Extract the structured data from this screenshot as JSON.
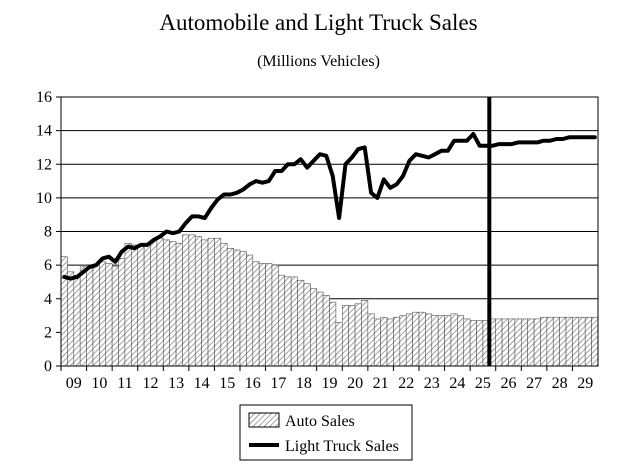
{
  "chart_data": {
    "type": "bar",
    "title": "Automobile and Light Truck Sales",
    "subtitle": "(Millions Vehicles)",
    "xlabel": "",
    "ylabel": "",
    "ylim": [
      0,
      16
    ],
    "yticks": [
      "0",
      "2",
      "4",
      "6",
      "8",
      "10",
      "12",
      "14",
      "16"
    ],
    "categories": [
      "09",
      "10",
      "11",
      "12",
      "13",
      "14",
      "15",
      "16",
      "17",
      "18",
      "19",
      "20",
      "21",
      "22",
      "23",
      "24",
      "25",
      "26",
      "27",
      "28",
      "29"
    ],
    "x_start": 2009.0,
    "x_end": 2030.0,
    "grid": true,
    "legend": "bottom-center",
    "vertical_marker": 2025.75,
    "colors": {
      "auto": "#7a7a7a",
      "truck": "#000000",
      "grid": "#000000"
    },
    "series": [
      {
        "name": "Auto Sales",
        "type": "bar",
        "x": [
          2009.0,
          2009.25,
          2009.5,
          2009.75,
          2010.0,
          2010.25,
          2010.5,
          2010.75,
          2011.0,
          2011.25,
          2011.5,
          2011.75,
          2012.0,
          2012.25,
          2012.5,
          2012.75,
          2013.0,
          2013.25,
          2013.5,
          2013.75,
          2014.0,
          2014.25,
          2014.5,
          2014.75,
          2015.0,
          2015.25,
          2015.5,
          2015.75,
          2016.0,
          2016.25,
          2016.5,
          2016.75,
          2017.0,
          2017.25,
          2017.5,
          2017.75,
          2018.0,
          2018.25,
          2018.5,
          2018.75,
          2019.0,
          2019.25,
          2019.5,
          2019.75,
          2020.0,
          2020.25,
          2020.5,
          2020.75,
          2021.0,
          2021.25,
          2021.5,
          2021.75,
          2022.0,
          2022.25,
          2022.5,
          2022.75,
          2023.0,
          2023.25,
          2023.5,
          2023.75,
          2024.0,
          2024.25,
          2024.5,
          2024.75,
          2025.0,
          2025.25,
          2025.5,
          2025.75,
          2026.0,
          2026.25,
          2026.5,
          2026.75,
          2027.0,
          2027.25,
          2027.5,
          2027.75,
          2028.0,
          2028.25,
          2028.5,
          2028.75,
          2029.0,
          2029.25,
          2029.5,
          2029.75
        ],
        "values": [
          6.5,
          5.6,
          5.4,
          5.9,
          5.8,
          6.0,
          6.2,
          6.1,
          5.9,
          6.4,
          7.3,
          7.2,
          7.2,
          7.3,
          7.5,
          7.6,
          7.5,
          7.4,
          7.3,
          7.8,
          7.8,
          7.7,
          7.5,
          7.6,
          7.6,
          7.3,
          7.0,
          6.9,
          6.8,
          6.6,
          6.2,
          6.1,
          6.1,
          6.0,
          5.4,
          5.3,
          5.3,
          5.1,
          4.9,
          4.6,
          4.4,
          4.2,
          3.8,
          2.6,
          3.6,
          3.6,
          3.7,
          3.9,
          3.1,
          2.8,
          2.9,
          2.8,
          2.9,
          3.0,
          3.1,
          3.2,
          3.2,
          3.1,
          3.0,
          3.0,
          3.0,
          3.1,
          3.0,
          2.8,
          2.7,
          2.7,
          2.7,
          2.8,
          2.8,
          2.8,
          2.8,
          2.8,
          2.8,
          2.8,
          2.8,
          2.9,
          2.9,
          2.9,
          2.9,
          2.9,
          2.9,
          2.9,
          2.9,
          2.9
        ]
      },
      {
        "name": "Light Truck Sales",
        "type": "line",
        "x": [
          2009.0,
          2009.25,
          2009.5,
          2009.75,
          2010.0,
          2010.25,
          2010.5,
          2010.75,
          2011.0,
          2011.25,
          2011.5,
          2011.75,
          2012.0,
          2012.25,
          2012.5,
          2012.75,
          2013.0,
          2013.25,
          2013.5,
          2013.75,
          2014.0,
          2014.25,
          2014.5,
          2014.75,
          2015.0,
          2015.25,
          2015.5,
          2015.75,
          2016.0,
          2016.25,
          2016.5,
          2016.75,
          2017.0,
          2017.25,
          2017.5,
          2017.75,
          2018.0,
          2018.25,
          2018.5,
          2018.75,
          2019.0,
          2019.25,
          2019.5,
          2019.75,
          2020.0,
          2020.25,
          2020.5,
          2020.75,
          2021.0,
          2021.25,
          2021.5,
          2021.75,
          2022.0,
          2022.25,
          2022.5,
          2022.75,
          2023.0,
          2023.25,
          2023.5,
          2023.75,
          2024.0,
          2024.25,
          2024.5,
          2024.75,
          2025.0,
          2025.25,
          2025.5,
          2025.75,
          2026.0,
          2026.25,
          2026.5,
          2026.75,
          2027.0,
          2027.25,
          2027.5,
          2027.75,
          2028.0,
          2028.25,
          2028.5,
          2028.75,
          2029.0,
          2029.25,
          2029.5,
          2029.75
        ],
        "values": [
          5.3,
          5.2,
          5.3,
          5.6,
          5.9,
          6.0,
          6.4,
          6.5,
          6.2,
          6.8,
          7.1,
          7.0,
          7.2,
          7.2,
          7.5,
          7.7,
          8.0,
          7.9,
          8.0,
          8.5,
          8.9,
          8.9,
          8.8,
          9.4,
          9.9,
          10.2,
          10.2,
          10.3,
          10.5,
          10.8,
          11.0,
          10.9,
          11.0,
          11.6,
          11.6,
          12.0,
          12.0,
          12.3,
          11.8,
          12.2,
          12.6,
          12.5,
          11.3,
          8.8,
          12.0,
          12.4,
          12.9,
          13.0,
          10.3,
          10.0,
          11.1,
          10.6,
          10.8,
          11.3,
          12.2,
          12.6,
          12.5,
          12.4,
          12.6,
          12.8,
          12.8,
          13.4,
          13.4,
          13.4,
          13.8,
          13.1,
          13.1,
          13.1,
          13.2,
          13.2,
          13.2,
          13.3,
          13.3,
          13.3,
          13.3,
          13.4,
          13.4,
          13.5,
          13.5,
          13.6,
          13.6,
          13.6,
          13.6,
          13.6
        ]
      }
    ]
  }
}
